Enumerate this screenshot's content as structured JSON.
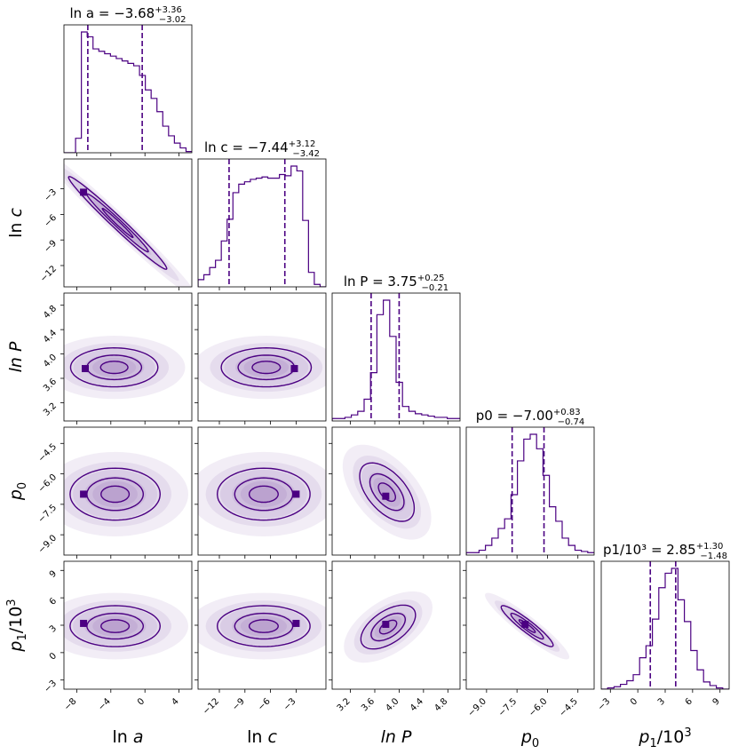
{
  "chart_data": {
    "type": "corner",
    "color": "#4b0082",
    "parameters": [
      {
        "id": "lna",
        "label_html": "ln <i>a</i>",
        "range": [
          -9.5,
          5.5
        ],
        "ticks": [
          -8,
          -4,
          0,
          4
        ],
        "tick_labels": [
          "−8",
          "−4",
          "0",
          "4"
        ],
        "median": -3.68,
        "plus": 3.36,
        "minus": 3.02,
        "title_text": "ln a = −3.68",
        "title_sup": "+3.36",
        "title_sub": "−3.02"
      },
      {
        "id": "lnc",
        "label_html": "ln <i>c</i>",
        "range": [
          -14.5,
          0.5
        ],
        "ticks": [
          -12,
          -9,
          -6,
          -3
        ],
        "tick_labels": [
          "−12",
          "−9",
          "−6",
          "−3"
        ],
        "median": -7.44,
        "plus": 3.12,
        "minus": 3.42,
        "title_text": "ln c = −7.44",
        "title_sup": "+3.12",
        "title_sub": "−3.42"
      },
      {
        "id": "lnP",
        "label_html": "<i>ln P</i>",
        "range": [
          2.9,
          5.0
        ],
        "ticks": [
          3.2,
          3.6,
          4.0,
          4.4,
          4.8
        ],
        "tick_labels": [
          "3.2",
          "3.6",
          "4.0",
          "4.4",
          "4.8"
        ],
        "median": 3.75,
        "plus": 0.25,
        "minus": 0.21,
        "title_text": "ln P = 3.75",
        "title_sup": "+0.25",
        "title_sub": "−0.21"
      },
      {
        "id": "p0",
        "label_html": "<i>p</i><sub>0</sub>",
        "range": [
          -10.0,
          -3.7
        ],
        "ticks": [
          -9.0,
          -7.5,
          -6.0,
          -4.5
        ],
        "tick_labels": [
          "−9.0",
          "−7.5",
          "−6.0",
          "−4.5"
        ],
        "median": -7.0,
        "plus": 0.83,
        "minus": 0.74,
        "title_text": "p0 = −7.00",
        "title_sup": "+0.83",
        "title_sub": "−0.74"
      },
      {
        "id": "p1",
        "label_html": "<i>p</i><sub>1</sub>/10<sup>3</sup>",
        "range": [
          -4.0,
          10.0
        ],
        "ticks": [
          -3,
          0,
          3,
          6,
          9
        ],
        "tick_labels": [
          "−3",
          "0",
          "3",
          "6",
          "9"
        ],
        "median": 2.85,
        "plus": 1.3,
        "minus": 1.48,
        "title_text": "p1/10³ = 2.85",
        "title_sup": "+1.30",
        "title_sub": "−1.48"
      }
    ],
    "histograms": {
      "lna": [
        0.0,
        0.0,
        0.12,
        1.0,
        0.96,
        0.86,
        0.84,
        0.82,
        0.8,
        0.78,
        0.76,
        0.74,
        0.72,
        0.64,
        0.52,
        0.45,
        0.34,
        0.22,
        0.14,
        0.08,
        0.04,
        0.01
      ],
      "lnc": [
        0.06,
        0.1,
        0.16,
        0.22,
        0.38,
        0.56,
        0.78,
        0.85,
        0.87,
        0.89,
        0.9,
        0.91,
        0.9,
        0.9,
        0.93,
        0.92,
        1.0,
        0.96,
        0.55,
        0.12,
        0.02,
        0.0
      ],
      "lnP": [
        0.02,
        0.02,
        0.03,
        0.05,
        0.08,
        0.18,
        0.4,
        0.88,
        1.0,
        0.7,
        0.32,
        0.12,
        0.08,
        0.06,
        0.05,
        0.04,
        0.03,
        0.03,
        0.02,
        0.02
      ],
      "p0": [
        0.02,
        0.02,
        0.04,
        0.08,
        0.14,
        0.22,
        0.3,
        0.5,
        0.78,
        0.96,
        1.0,
        0.88,
        0.66,
        0.4,
        0.28,
        0.14,
        0.08,
        0.04,
        0.03,
        0.02
      ],
      "p1": [
        0.0,
        0.01,
        0.02,
        0.04,
        0.07,
        0.12,
        0.26,
        0.36,
        0.58,
        0.84,
        0.96,
        1.0,
        0.74,
        0.56,
        0.32,
        0.16,
        0.06,
        0.03,
        0.01,
        0.0
      ]
    },
    "contour_levels": [
      0.5,
      1.0,
      1.6
    ],
    "pairs": [
      {
        "row": "lnc",
        "col": "lna",
        "mean": [
          -3.2,
          -7.0
        ],
        "sd": [
          3.6,
          3.4
        ],
        "rho": -0.985,
        "mode": [
          -7.2,
          -3.4
        ]
      },
      {
        "row": "lnP",
        "col": "lna",
        "mean": [
          -3.6,
          3.78
        ],
        "sd": [
          3.2,
          0.2
        ],
        "rho": 0.0,
        "mode": [
          -7.0,
          3.76
        ]
      },
      {
        "row": "lnP",
        "col": "lnc",
        "mean": [
          -6.5,
          3.78
        ],
        "sd": [
          3.3,
          0.2
        ],
        "rho": 0.0,
        "mode": [
          -3.2,
          3.76
        ]
      },
      {
        "row": "p0",
        "col": "lna",
        "mean": [
          -3.5,
          -7.0
        ],
        "sd": [
          3.3,
          0.8
        ],
        "rho": 0.0,
        "mode": [
          -7.2,
          -7.0
        ]
      },
      {
        "row": "p0",
        "col": "lnc",
        "mean": [
          -6.8,
          -7.0
        ],
        "sd": [
          3.4,
          0.8
        ],
        "rho": 0.0,
        "mode": [
          -3.0,
          -7.0
        ]
      },
      {
        "row": "p0",
        "col": "lnP",
        "mean": [
          3.8,
          -6.9
        ],
        "sd": [
          0.28,
          0.9
        ],
        "rho": -0.55,
        "mode": [
          3.78,
          -7.1
        ]
      },
      {
        "row": "p1",
        "col": "lna",
        "mean": [
          -3.5,
          2.9
        ],
        "sd": [
          3.3,
          1.4
        ],
        "rho": 0.0,
        "mode": [
          -7.2,
          3.2
        ]
      },
      {
        "row": "p1",
        "col": "lnc",
        "mean": [
          -6.8,
          2.9
        ],
        "sd": [
          3.4,
          1.4
        ],
        "rho": 0.0,
        "mode": [
          -3.0,
          3.2
        ]
      },
      {
        "row": "p1",
        "col": "lnP",
        "mean": [
          3.82,
          2.8
        ],
        "sd": [
          0.28,
          1.5
        ],
        "rho": 0.55,
        "mode": [
          3.78,
          3.1
        ]
      },
      {
        "row": "p1",
        "col": "p0",
        "mean": [
          -7.0,
          2.9
        ],
        "sd": [
          0.8,
          1.4
        ],
        "rho": -0.93,
        "mode": [
          -7.1,
          3.1
        ]
      }
    ]
  }
}
